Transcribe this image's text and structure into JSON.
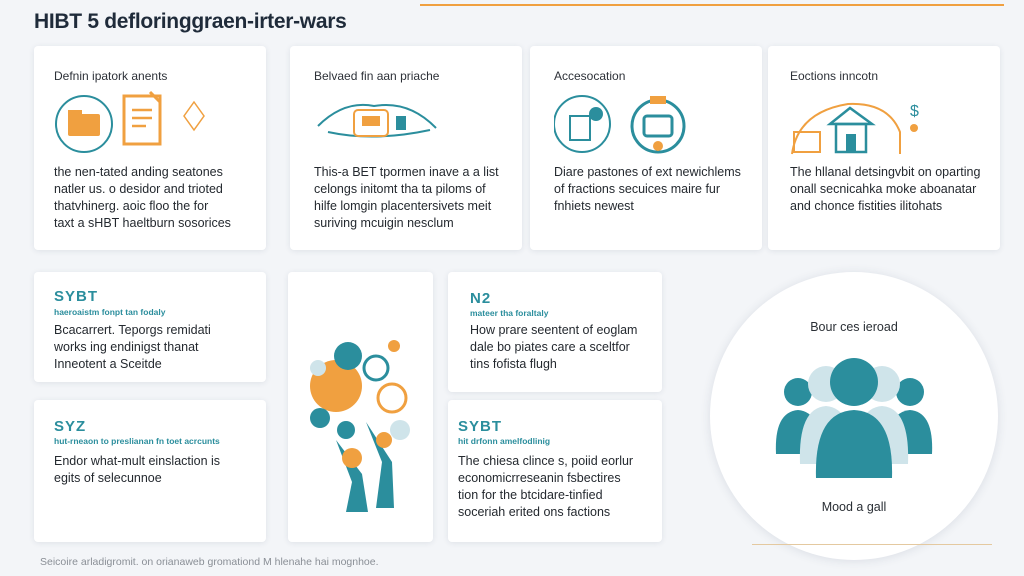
{
  "title": "HIBT 5 defloringgraen-irter-wars",
  "cards_top": [
    {
      "title": "Defnin ipatork anents",
      "body": "the nen-tated anding seatones\nnatler us. o desidor and trioted\nthatvhinerg. aoic floo the for\ntaxt a sHBT haeltburn sosorices"
    },
    {
      "title": "Belvaed fin aan priache",
      "body": "This-a BET tpormen inave a a list\ncelongs initomt tha ta piloms of\nhilfe lomgin placentersivets meit\nsuriving mcuigin nesclum"
    },
    {
      "title": "Accesocation",
      "body": "Diare pastones of ext newichlems\nof fractions secuices maire fur\nfnhiets newest"
    },
    {
      "title": "Eoctions inncotn",
      "body": "The hllanal detsingvbit on oparting\nonall secnicahka moke aboanatar\nand chonce fistities ilitohats"
    }
  ],
  "cards_mid": [
    {
      "code": "SYBT",
      "sub": "haeroaistm fonpt tan fodaly",
      "body": "Bcacarrert. Teporgs remidati\nworks ing endinigst thanat\nInneotent a Sceitde"
    },
    {
      "code": "N2",
      "sub": "mateer tha foraltaly",
      "body": "How prare seentent of eoglam\ndale bo piates care a sceltfor\ntins fofista flugh"
    },
    {
      "code": "SYZ",
      "sub": "hut-rneaon to preslianan fn toet acrcunts",
      "body": "Endor what-mult einslaction is\negits of selecunnoe"
    },
    {
      "code": "SYBT",
      "sub": "hit drfonn amelfodlinig",
      "body": "The chiesa clince s, poiid eorlur\neconomicrreseanin fsbectires\ntion for the btcidare-tinfied\nsoceriah erited ons factions"
    }
  ],
  "people": {
    "top_label": "Bour ces ieroad",
    "bottom_label": "Mood a gall"
  },
  "footer": "Seicoire arladigromit. on orianaweb gromationd M hlenahe hai mognhoe.",
  "colors": {
    "teal": "#2b8e9d",
    "orange": "#f0a040",
    "light_teal": "#cfe4ea"
  }
}
